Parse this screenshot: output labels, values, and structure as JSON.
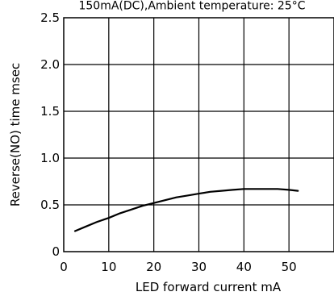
{
  "chart_data": {
    "type": "line",
    "title": "150mA(DC),Ambient temperature: 25°C",
    "xlabel": "LED forward current mA",
    "ylabel": "Reverse(NO) time msec",
    "xlim": [
      0,
      60
    ],
    "ylim": [
      0,
      2.5
    ],
    "x_ticks": [
      0,
      10,
      20,
      30,
      40,
      50
    ],
    "y_ticks": [
      0,
      0.5,
      1.0,
      1.5,
      2.0,
      2.5
    ],
    "x_tick_labels": [
      "0",
      "10",
      "20",
      "30",
      "40",
      "50"
    ],
    "y_tick_labels": [
      "0",
      "0.5",
      "1.0",
      "1.5",
      "2.0",
      "2.5"
    ],
    "grid": true,
    "series": [
      {
        "x": [
          2.5,
          5,
          7.5,
          10,
          12.5,
          15,
          17.5,
          20,
          22.5,
          25,
          27.5,
          30,
          32.5,
          35,
          37.5,
          40,
          42.5,
          45,
          47.5,
          50,
          52
        ],
        "y": [
          0.22,
          0.27,
          0.32,
          0.36,
          0.41,
          0.45,
          0.49,
          0.52,
          0.55,
          0.58,
          0.6,
          0.62,
          0.64,
          0.65,
          0.66,
          0.67,
          0.67,
          0.67,
          0.67,
          0.66,
          0.65
        ]
      }
    ],
    "colors": {
      "line": "#000000",
      "grid": "#000000",
      "background": "#ffffff"
    }
  }
}
